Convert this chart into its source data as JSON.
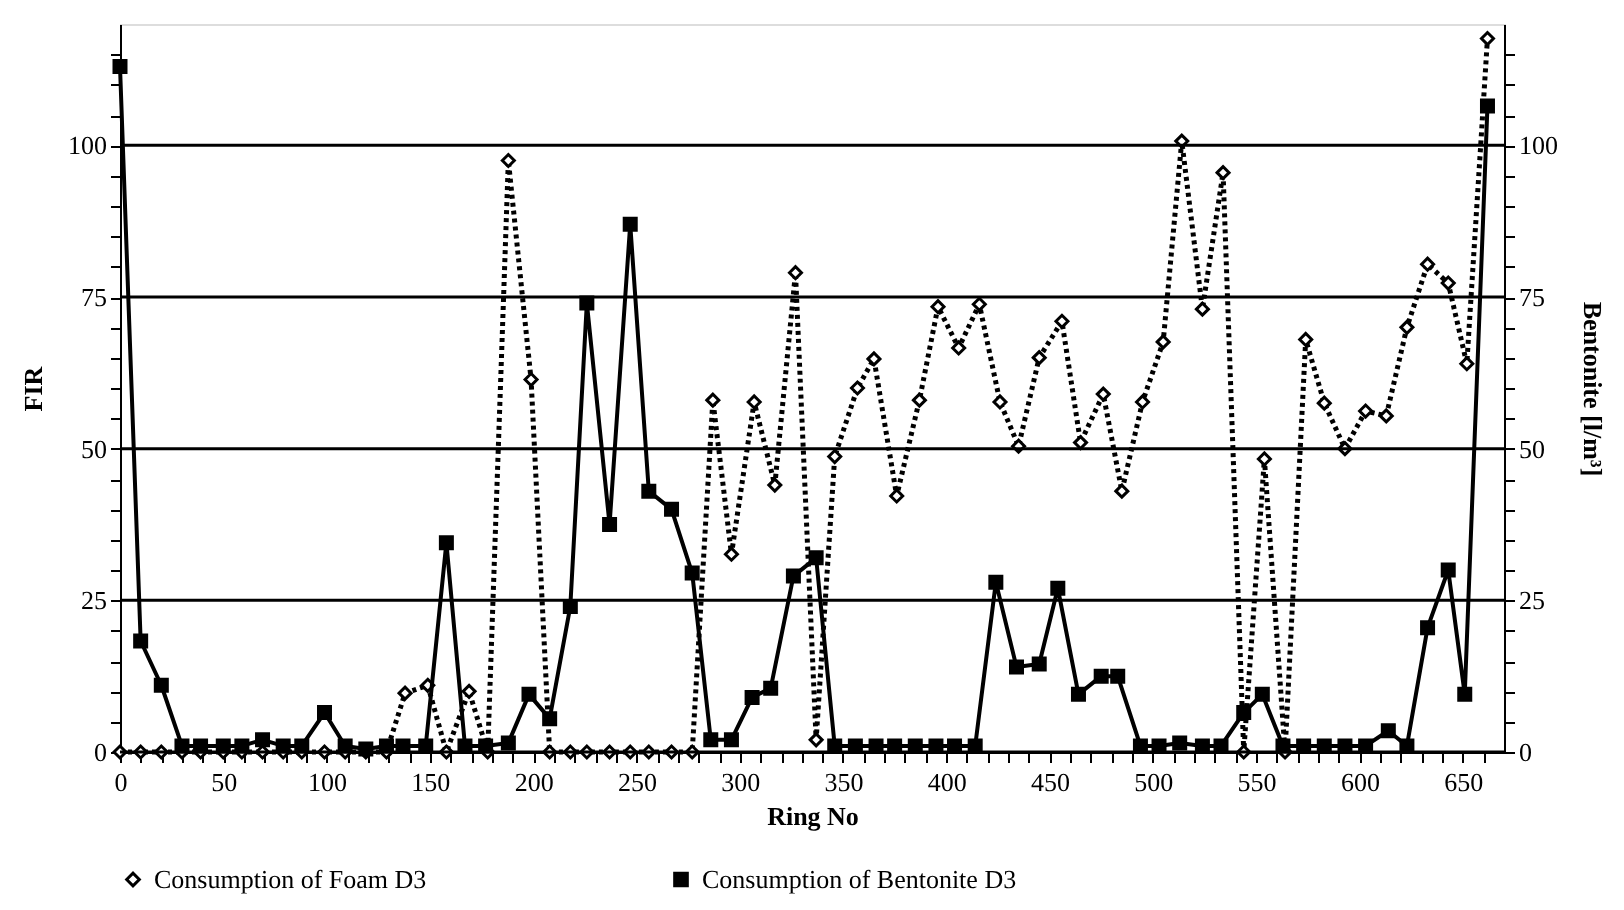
{
  "chart_data": {
    "type": "line",
    "xlabel": "Ring No",
    "ylabel": "FIR",
    "y2label": "Bentonite [l/m³]",
    "xlim": [
      0,
      670
    ],
    "ylim": [
      0,
      120
    ],
    "y2lim": [
      0,
      120
    ],
    "xticks": [
      0,
      {
        "value": 10,
        "label": null
      },
      {
        "value": 20,
        "label": null
      },
      {
        "value": 30,
        "label": null
      },
      {
        "value": 40,
        "label": null
      },
      50,
      {
        "value": 60,
        "label": null
      },
      {
        "value": 70,
        "label": null
      },
      {
        "value": 80,
        "label": null
      },
      {
        "value": 90,
        "label": null
      },
      100,
      {
        "value": 110,
        "label": null
      },
      {
        "value": 120,
        "label": null
      },
      {
        "value": 130,
        "label": null
      },
      {
        "value": 140,
        "label": null
      },
      150,
      {
        "value": 160,
        "label": null
      },
      {
        "value": 170,
        "label": null
      },
      {
        "value": 180,
        "label": null
      },
      {
        "value": 190,
        "label": null
      },
      200,
      {
        "value": 210,
        "label": null
      },
      {
        "value": 220,
        "label": null
      },
      {
        "value": 230,
        "label": null
      },
      {
        "value": 240,
        "label": null
      },
      250,
      {
        "value": 260,
        "label": null
      },
      {
        "value": 270,
        "label": null
      },
      {
        "value": 280,
        "label": null
      },
      {
        "value": 290,
        "label": null
      },
      300,
      {
        "value": 310,
        "label": null
      },
      {
        "value": 320,
        "label": null
      },
      {
        "value": 330,
        "label": null
      },
      {
        "value": 340,
        "label": null
      },
      350,
      {
        "value": 360,
        "label": null
      },
      {
        "value": 370,
        "label": null
      },
      {
        "value": 380,
        "label": null
      },
      {
        "value": 390,
        "label": null
      },
      400,
      {
        "value": 410,
        "label": null
      },
      {
        "value": 420,
        "label": null
      },
      {
        "value": 430,
        "label": null
      },
      {
        "value": 440,
        "label": null
      },
      450,
      {
        "value": 460,
        "label": null
      },
      {
        "value": 470,
        "label": null
      },
      {
        "value": 480,
        "label": null
      },
      {
        "value": 490,
        "label": null
      },
      500,
      {
        "value": 510,
        "label": null
      },
      {
        "value": 520,
        "label": null
      },
      {
        "value": 530,
        "label": null
      },
      {
        "value": 540,
        "label": null
      },
      550,
      {
        "value": 560,
        "label": null
      },
      {
        "value": 570,
        "label": null
      },
      {
        "value": 580,
        "label": null
      },
      {
        "value": 590,
        "label": null
      },
      600,
      {
        "value": 610,
        "label": null
      },
      {
        "value": 620,
        "label": null
      },
      {
        "value": 630,
        "label": null
      },
      {
        "value": 640,
        "label": null
      },
      650,
      {
        "value": 660,
        "label": null
      }
    ],
    "yticks": [
      0,
      {
        "value": 5,
        "label": null
      },
      {
        "value": 10,
        "label": null
      },
      {
        "value": 15,
        "label": null
      },
      {
        "value": 20,
        "label": null
      },
      25,
      {
        "value": 30,
        "label": null
      },
      {
        "value": 35,
        "label": null
      },
      {
        "value": 40,
        "label": null
      },
      {
        "value": 45,
        "label": null
      },
      50,
      {
        "value": 55,
        "label": null
      },
      {
        "value": 60,
        "label": null
      },
      {
        "value": 65,
        "label": null
      },
      {
        "value": 70,
        "label": null
      },
      75,
      {
        "value": 80,
        "label": null
      },
      {
        "value": 85,
        "label": null
      },
      {
        "value": 90,
        "label": null
      },
      {
        "value": 95,
        "label": null
      },
      100,
      {
        "value": 105,
        "label": null
      },
      {
        "value": 110,
        "label": null
      },
      {
        "value": 115,
        "label": null
      }
    ],
    "y2ticks": [
      0,
      {
        "value": 5,
        "label": null
      },
      {
        "value": 10,
        "label": null
      },
      {
        "value": 15,
        "label": null
      },
      {
        "value": 20,
        "label": null
      },
      25,
      {
        "value": 30,
        "label": null
      },
      {
        "value": 35,
        "label": null
      },
      {
        "value": 40,
        "label": null
      },
      {
        "value": 45,
        "label": null
      },
      50,
      {
        "value": 55,
        "label": null
      },
      {
        "value": 60,
        "label": null
      },
      {
        "value": 65,
        "label": null
      },
      {
        "value": 70,
        "label": null
      },
      75,
      {
        "value": 80,
        "label": null
      },
      {
        "value": 85,
        "label": null
      },
      {
        "value": 90,
        "label": null
      },
      {
        "value": 95,
        "label": null
      },
      100,
      {
        "value": 105,
        "label": null
      },
      {
        "value": 110,
        "label": null
      },
      {
        "value": 115,
        "label": null
      }
    ],
    "grid": "y",
    "legend": "bottom",
    "series": [
      {
        "name": "Consumption of Foam D3",
        "color": "#000000",
        "marker": "diamond",
        "line_style": "dotted",
        "x": [
          0,
          10,
          20,
          30,
          39,
          50,
          59,
          69,
          79,
          88,
          99,
          109,
          119,
          129,
          138,
          149,
          158,
          169,
          178,
          188,
          199,
          208,
          218,
          226,
          237,
          247,
          256,
          267,
          277,
          287,
          296,
          307,
          317,
          327,
          337,
          346,
          357,
          365,
          376,
          387,
          396,
          406,
          416,
          426,
          435,
          445,
          456,
          465,
          476,
          485,
          495,
          505,
          514,
          524,
          534,
          544,
          554,
          564,
          574,
          583,
          593,
          603,
          613,
          623,
          633,
          643,
          652,
          662
        ],
        "values": [
          0,
          0,
          0,
          0,
          0,
          0,
          0,
          0,
          0,
          0,
          0,
          0,
          0,
          0,
          9.7,
          11,
          0,
          10,
          0,
          97.5,
          61.4,
          0,
          0,
          0,
          0,
          0,
          0,
          0,
          0,
          58,
          32.6,
          57.7,
          44,
          79,
          2,
          48.7,
          60,
          64.8,
          42.2,
          58,
          73.4,
          66.6,
          73.8,
          57.7,
          50.4,
          65,
          71,
          51,
          59,
          43,
          57.7,
          67.6,
          100.7,
          73,
          95.5,
          0,
          48.3,
          0,
          68,
          57.5,
          50,
          56.2,
          55.4,
          70,
          80.4,
          77.3,
          64,
          117.6
        ]
      },
      {
        "name": "Consumption of Bentonite D3",
        "color": "#000000",
        "marker": "square",
        "line_style": "solid",
        "axis": "y2",
        "x": [
          0,
          10,
          20,
          30,
          39,
          50,
          59,
          69,
          79,
          88,
          99,
          109,
          119,
          129,
          137,
          148,
          158,
          167,
          177,
          188,
          198,
          208,
          218,
          226,
          237,
          247,
          256,
          267,
          277,
          286,
          296,
          306,
          315,
          326,
          337,
          346,
          356,
          366,
          375,
          385,
          395,
          404,
          414,
          424,
          434,
          445,
          454,
          464,
          475,
          483,
          494,
          503,
          513,
          524,
          533,
          544,
          553,
          563,
          573,
          583,
          593,
          603,
          614,
          623,
          633,
          643,
          651,
          662
        ],
        "values": [
          113,
          18.3,
          11,
          1,
          1,
          1,
          1,
          2,
          1,
          1,
          6.5,
          1,
          0.5,
          1,
          1,
          1,
          34.5,
          1,
          1,
          1.5,
          9.5,
          5.5,
          24,
          74,
          37.5,
          87,
          43,
          40,
          29.5,
          2,
          2,
          9,
          10.5,
          29,
          32,
          1,
          1,
          1,
          1,
          1,
          1,
          1,
          1,
          28,
          14,
          14.5,
          27,
          9.5,
          12.5,
          12.5,
          1,
          1,
          1.5,
          1,
          1,
          6.5,
          9.5,
          1,
          1,
          1,
          1,
          1,
          3.5,
          1,
          20.5,
          30,
          9.5,
          106.5
        ]
      }
    ]
  }
}
